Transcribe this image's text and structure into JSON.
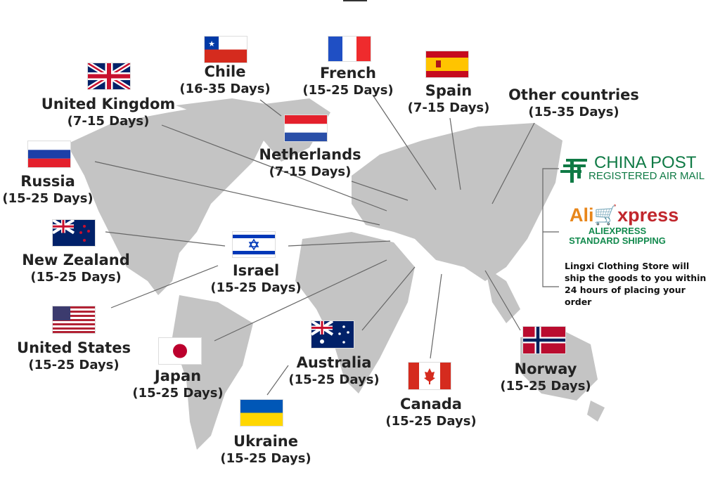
{
  "destinations": [
    {
      "name": "Chile",
      "days": "(16-35 Days)",
      "flag": "chile-flag"
    },
    {
      "name": "French",
      "days": "(15-25 Days)",
      "flag": "france-flag"
    },
    {
      "name": "Spain",
      "days": "(7-15 Days)",
      "flag": "spain-flag"
    },
    {
      "name": "Other countries",
      "days": "(15-35 Days)",
      "flag": ""
    },
    {
      "name": "United Kingdom",
      "days": "(7-15 Days)",
      "flag": "uk-flag"
    },
    {
      "name": "Netherlands",
      "days": "(7-15 Days)",
      "flag": "netherlands-flag"
    },
    {
      "name": "Russia",
      "days": "(15-25 Days)",
      "flag": "russia-flag"
    },
    {
      "name": "New Zealand",
      "days": "(15-25 Days)",
      "flag": "new-zealand-flag"
    },
    {
      "name": "Israel",
      "days": "(15-25 Days)",
      "flag": "israel-flag"
    },
    {
      "name": "United States",
      "days": "(15-25 Days)",
      "flag": "usa-flag"
    },
    {
      "name": "Japan",
      "days": "(15-25 Days)",
      "flag": "japan-flag"
    },
    {
      "name": "Australia",
      "days": "(15-25 Days)",
      "flag": "australia-flag"
    },
    {
      "name": "Canada",
      "days": "(15-25 Days)",
      "flag": "canada-flag"
    },
    {
      "name": "Norway",
      "days": "(15-25 Days)",
      "flag": "norway-flag"
    },
    {
      "name": "Ukraine",
      "days": "(15-25 Days)",
      "flag": "ukraine-flag"
    }
  ],
  "carriers": {
    "china_post": {
      "title": "CHINA POST",
      "subtitle": "REGISTERED AIR MAIL"
    },
    "aliexpress": {
      "logo_ali": "Ali",
      "logo_express": "xpress",
      "line1": "ALIEXPRESS",
      "line2": "STANDARD SHIPPING"
    }
  },
  "note": "Lingxi Clothing Store will ship the goods to you within 24 hours of placing your order",
  "colors": {
    "land": "#c4c4c4",
    "china_post": "#0f7a45",
    "ali_orange": "#e8861a",
    "ali_red": "#c1272d"
  }
}
